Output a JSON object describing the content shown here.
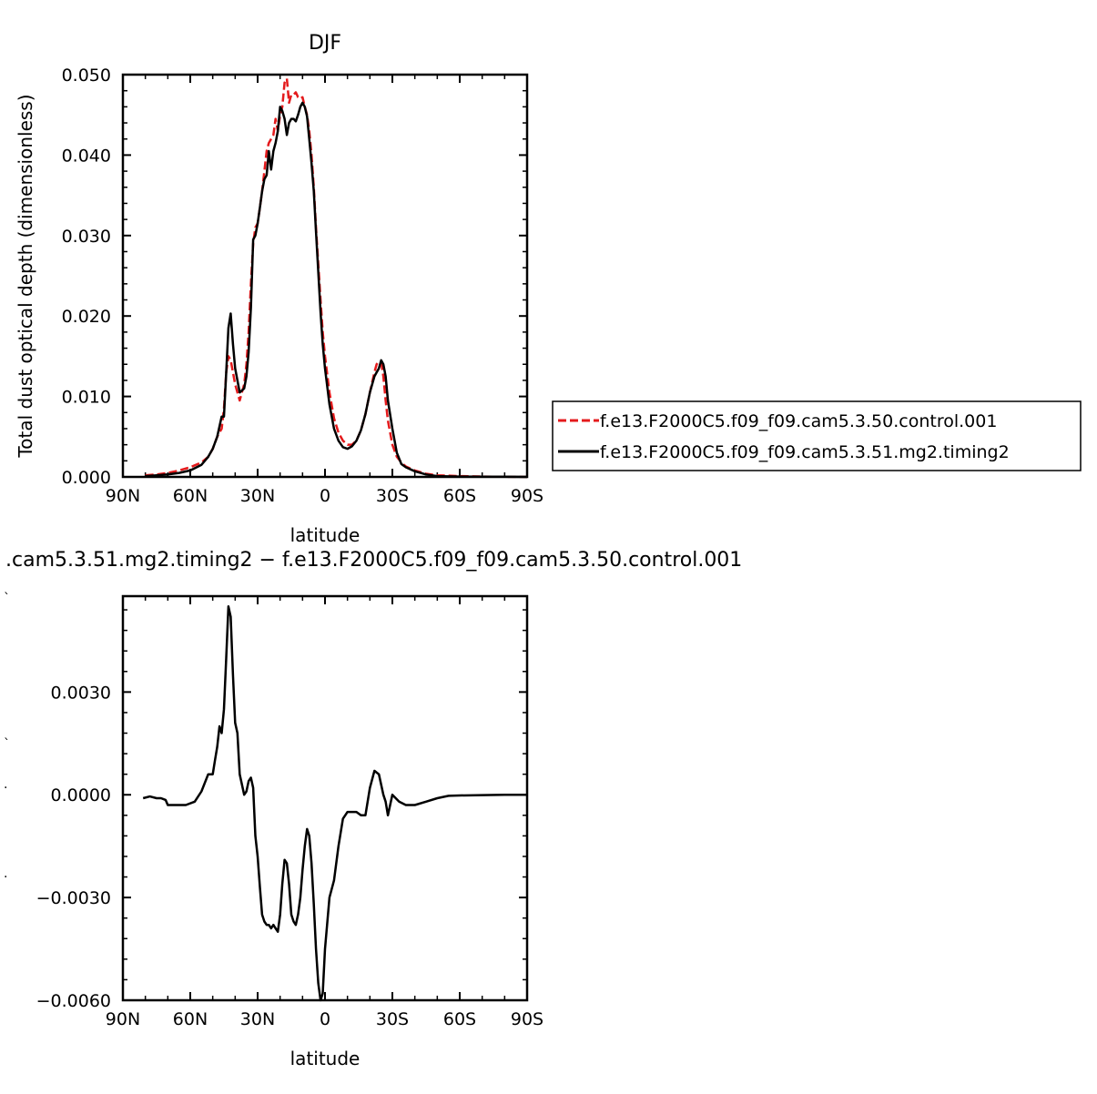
{
  "chart_data": [
    {
      "type": "line",
      "title": "DJF",
      "xlabel": "latitude",
      "ylabel": "Total dust optical depth (dimensionless)",
      "xlim": [
        90,
        -90
      ],
      "ylim": [
        0,
        0.05
      ],
      "x_ticks": [
        90,
        60,
        30,
        0,
        -30,
        -60,
        -90
      ],
      "x_tick_labels": [
        "90N",
        "60N",
        "30N",
        "0",
        "30S",
        "60S",
        "90S"
      ],
      "y_ticks": [
        0,
        0.01,
        0.02,
        0.03,
        0.04,
        0.05
      ],
      "y_tick_labels": [
        "0.000",
        "0.010",
        "0.020",
        "0.030",
        "0.040",
        "0.050"
      ],
      "grid": false,
      "legend_position": "right",
      "series": [
        {
          "name": "f.e13.F2000C5.f09_f09.cam5.3.50.control.001",
          "color": "#e41a1c",
          "dash": "dashed",
          "x": [
            80,
            75,
            70,
            65,
            60,
            55,
            52,
            50,
            48,
            46,
            45,
            44,
            43,
            42,
            41,
            40,
            38,
            36,
            35,
            34,
            33,
            32,
            31,
            30,
            29,
            28,
            27,
            26,
            25,
            24,
            23,
            22,
            21,
            20,
            19,
            18,
            17,
            16,
            15,
            14,
            13,
            12,
            11,
            10,
            9,
            8,
            7,
            6,
            5,
            4,
            3,
            2,
            1,
            0,
            -2,
            -4,
            -6,
            -8,
            -10,
            -12,
            -14,
            -16,
            -18,
            -20,
            -22,
            -23,
            -24,
            -25,
            -26,
            -27,
            -28,
            -30,
            -32,
            -34,
            -36,
            -40,
            -45,
            -50,
            -60,
            -70,
            -80,
            -90
          ],
          "y": [
            0.0002,
            0.0003,
            0.0005,
            0.0008,
            0.0012,
            0.0018,
            0.0025,
            0.0035,
            0.005,
            0.006,
            0.0085,
            0.013,
            0.015,
            0.0145,
            0.013,
            0.0115,
            0.0095,
            0.0115,
            0.014,
            0.018,
            0.024,
            0.029,
            0.031,
            0.0315,
            0.0335,
            0.0355,
            0.038,
            0.0405,
            0.0415,
            0.042,
            0.0425,
            0.0445,
            0.043,
            0.045,
            0.046,
            0.049,
            0.0495,
            0.0465,
            0.0475,
            0.0475,
            0.0478,
            0.0472,
            0.047,
            0.0472,
            0.046,
            0.045,
            0.043,
            0.04,
            0.036,
            0.031,
            0.0265,
            0.022,
            0.018,
            0.015,
            0.0105,
            0.0073,
            0.0055,
            0.0045,
            0.004,
            0.004,
            0.0045,
            0.0058,
            0.0078,
            0.0105,
            0.013,
            0.014,
            0.0143,
            0.0142,
            0.0125,
            0.0095,
            0.007,
            0.004,
            0.0025,
            0.0018,
            0.0013,
            0.0008,
            0.0004,
            0.0002,
            0.0001,
            5e-05,
            2e-05,
            0.0
          ]
        },
        {
          "name": "f.e13.F2000C5.f09_f09.cam5.3.51.mg2.timing2",
          "color": "#000000",
          "dash": "solid",
          "x": [
            80,
            75,
            70,
            65,
            60,
            55,
            52,
            50,
            48,
            46,
            45,
            44,
            43,
            42,
            41,
            40,
            38,
            36,
            35,
            34,
            33,
            32,
            31,
            30,
            29,
            28,
            27,
            26,
            25,
            24,
            23,
            22,
            21,
            20,
            19,
            18,
            17,
            16,
            15,
            14,
            13,
            12,
            11,
            10,
            9,
            8,
            7,
            6,
            5,
            4,
            3,
            2,
            1,
            0,
            -2,
            -4,
            -6,
            -8,
            -10,
            -12,
            -14,
            -16,
            -18,
            -20,
            -22,
            -23,
            -24,
            -25,
            -26,
            -27,
            -28,
            -30,
            -32,
            -34,
            -36,
            -40,
            -45,
            -50,
            -60,
            -70,
            -80,
            -90
          ],
          "y": [
            0.0001,
            0.0002,
            0.0003,
            0.0005,
            0.0008,
            0.0015,
            0.0025,
            0.0035,
            0.005,
            0.0075,
            0.0075,
            0.013,
            0.0185,
            0.0203,
            0.0165,
            0.0135,
            0.0105,
            0.011,
            0.0125,
            0.0155,
            0.021,
            0.0295,
            0.03,
            0.0315,
            0.0335,
            0.0355,
            0.037,
            0.0375,
            0.0405,
            0.0382,
            0.0405,
            0.0415,
            0.043,
            0.046,
            0.0455,
            0.0445,
            0.0425,
            0.044,
            0.0445,
            0.0445,
            0.0442,
            0.045,
            0.046,
            0.0465,
            0.046,
            0.0448,
            0.042,
            0.039,
            0.0355,
            0.0305,
            0.0255,
            0.0205,
            0.0165,
            0.0135,
            0.009,
            0.006,
            0.0045,
            0.0037,
            0.0035,
            0.0038,
            0.0045,
            0.0058,
            0.0078,
            0.0105,
            0.0125,
            0.013,
            0.0135,
            0.0145,
            0.014,
            0.0125,
            0.0095,
            0.006,
            0.003,
            0.0016,
            0.0012,
            0.0007,
            0.0003,
            0.0001,
            5e-05,
            3e-05,
            2e-05,
            0.0
          ]
        }
      ]
    },
    {
      "type": "line",
      "title": ".cam5.3.51.mg2.timing2 − f.e13.F2000C5.f09_f09.cam5.3.50.control.001",
      "xlabel": "latitude",
      "ylabel": "",
      "xlim": [
        90,
        -90
      ],
      "ylim": [
        -0.006,
        0.0058
      ],
      "x_ticks": [
        90,
        60,
        30,
        0,
        -30,
        -60,
        -90
      ],
      "x_tick_labels": [
        "90N",
        "60N",
        "30N",
        "0",
        "30S",
        "60S",
        "90S"
      ],
      "y_ticks": [
        -0.006,
        -0.003,
        0.0,
        0.003
      ],
      "y_tick_labels": [
        "−0.0060",
        "−0.0030",
        "0.0000",
        "0.0030"
      ],
      "grid": false,
      "series": [
        {
          "color": "#000000",
          "dash": "solid",
          "x": [
            81,
            78,
            75,
            73,
            71,
            70,
            68,
            66,
            62,
            58,
            55,
            52,
            50,
            49,
            48,
            47,
            46,
            45,
            44,
            43,
            42,
            41,
            40,
            39,
            38,
            36,
            35,
            34,
            33,
            32,
            31,
            30,
            29,
            28,
            27,
            26,
            25,
            24,
            23,
            22,
            21,
            20,
            19,
            18,
            17,
            16,
            15,
            14,
            13,
            12,
            11,
            10,
            9,
            8,
            7,
            6,
            5,
            4,
            3,
            2,
            1,
            0,
            -2,
            -4,
            -6,
            -8,
            -10,
            -12,
            -14,
            -16,
            -18,
            -20,
            -22,
            -24,
            -26,
            -27,
            -28,
            -30,
            -33,
            -36,
            -40,
            -45,
            -50,
            -55,
            -60,
            -70,
            -80,
            -90
          ],
          "y": [
            -0.0001,
            -5e-05,
            -0.0001,
            -0.0001,
            -0.00015,
            -0.0003,
            -0.0003,
            -0.0003,
            -0.0003,
            -0.0002,
            0.0001,
            0.0006,
            0.0006,
            0.001,
            0.0014,
            0.002,
            0.0018,
            0.0025,
            0.004,
            0.0055,
            0.0052,
            0.0035,
            0.0021,
            0.0018,
            0.0006,
            0.0,
            0.0001,
            0.0004,
            0.0005,
            0.0002,
            -0.0012,
            -0.0018,
            -0.0027,
            -0.0035,
            -0.0037,
            -0.0038,
            -0.0038,
            -0.0039,
            -0.0038,
            -0.0039,
            -0.004,
            -0.0035,
            -0.0026,
            -0.0019,
            -0.002,
            -0.0026,
            -0.0035,
            -0.0037,
            -0.0038,
            -0.0035,
            -0.003,
            -0.0022,
            -0.0015,
            -0.001,
            -0.0012,
            -0.002,
            -0.0032,
            -0.0045,
            -0.0055,
            -0.006,
            -0.0058,
            -0.0045,
            -0.003,
            -0.0025,
            -0.0015,
            -0.0007,
            -0.0005,
            -0.0005,
            -0.0005,
            -0.0006,
            -0.0006,
            0.0002,
            0.0007,
            0.0006,
            0.0,
            -0.0002,
            -0.0006,
            0.0,
            -0.0002,
            -0.0003,
            -0.0003,
            -0.0002,
            -0.0001,
            -3e-05,
            -2e-05,
            -1e-05,
            0.0,
            0.0
          ]
        }
      ]
    }
  ],
  "stray_marks": [
    "`",
    "`",
    ".",
    "."
  ]
}
